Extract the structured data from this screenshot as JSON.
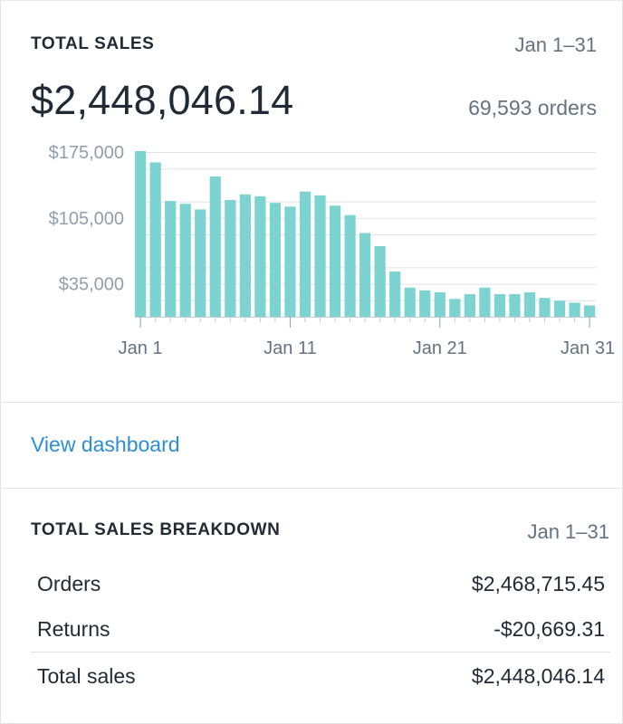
{
  "summary": {
    "title": "TOTAL SALES",
    "date_range": "Jan 1–31",
    "total_value": "$2,448,046.14",
    "orders": "69,593 orders"
  },
  "view_link": "View dashboard",
  "breakdown": {
    "title": "TOTAL SALES BREAKDOWN",
    "date_range": "Jan 1–31",
    "rows": [
      {
        "label": "Orders",
        "value": "$2,468,715.45"
      },
      {
        "label": "Returns",
        "value": "-$20,669.31"
      },
      {
        "label": "Total sales",
        "value": "$2,448,046.14"
      }
    ]
  },
  "chart_data": {
    "type": "bar",
    "title": "",
    "xlabel": "",
    "ylabel": "",
    "ylim": [
      0,
      175000
    ],
    "y_ticks": [
      35000,
      105000,
      175000
    ],
    "y_tick_labels": [
      "$35,000",
      "$105,000",
      "$175,000"
    ],
    "gridlines_every": 17500,
    "x_tick_labels": [
      {
        "day": 1,
        "label": "Jan 1"
      },
      {
        "day": 11,
        "label": "Jan 11"
      },
      {
        "day": 21,
        "label": "Jan 21"
      },
      {
        "day": 31,
        "label": "Jan 31"
      }
    ],
    "bar_color": "#7dd3cf",
    "categories": [
      "Jan 1",
      "Jan 2",
      "Jan 3",
      "Jan 4",
      "Jan 5",
      "Jan 6",
      "Jan 7",
      "Jan 8",
      "Jan 9",
      "Jan 10",
      "Jan 11",
      "Jan 12",
      "Jan 13",
      "Jan 14",
      "Jan 15",
      "Jan 16",
      "Jan 17",
      "Jan 18",
      "Jan 19",
      "Jan 20",
      "Jan 21",
      "Jan 22",
      "Jan 23",
      "Jan 24",
      "Jan 25",
      "Jan 26",
      "Jan 27",
      "Jan 28",
      "Jan 29",
      "Jan 30",
      "Jan 31"
    ],
    "values": [
      176000,
      164000,
      123000,
      120000,
      114000,
      149000,
      124000,
      130000,
      128000,
      121000,
      117000,
      133000,
      129000,
      118000,
      108000,
      89000,
      75000,
      48000,
      31000,
      28000,
      26000,
      19000,
      24000,
      31000,
      24000,
      24000,
      26000,
      20000,
      17000,
      15000,
      12000
    ]
  }
}
